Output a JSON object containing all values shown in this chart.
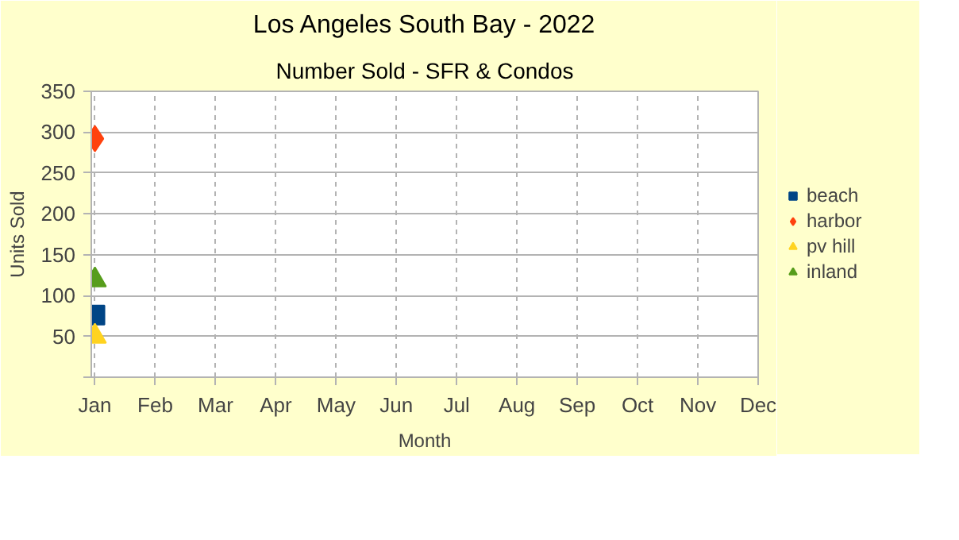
{
  "chart_data": {
    "type": "scatter",
    "title": "Los Angeles South Bay - 2022",
    "subtitle": "Number Sold - SFR & Condos",
    "xlabel": "Month",
    "ylabel": "Units Sold",
    "categories": [
      "Jan",
      "Feb",
      "Mar",
      "Apr",
      "May",
      "Jun",
      "Jul",
      "Aug",
      "Sep",
      "Oct",
      "Nov",
      "Dec"
    ],
    "series": [
      {
        "name": "beach",
        "color": "#004586",
        "marker": "square",
        "values": [
          76,
          null,
          null,
          null,
          null,
          null,
          null,
          null,
          null,
          null,
          null,
          null
        ]
      },
      {
        "name": "harbor",
        "color": "#ff420e",
        "marker": "diamond",
        "values": [
          292,
          null,
          null,
          null,
          null,
          null,
          null,
          null,
          null,
          null,
          null,
          null
        ]
      },
      {
        "name": "pv hill",
        "color": "#ffd320",
        "marker": "triangle",
        "values": [
          50,
          null,
          null,
          null,
          null,
          null,
          null,
          null,
          null,
          null,
          null,
          null
        ]
      },
      {
        "name": "inland",
        "color": "#579d1c",
        "marker": "triangle",
        "values": [
          119,
          null,
          null,
          null,
          null,
          null,
          null,
          null,
          null,
          null,
          null,
          null
        ]
      }
    ],
    "ylim": [
      0,
      350
    ],
    "yticks": [
      {
        "value": 0,
        "label": null
      },
      50,
      100,
      150,
      200,
      250,
      300,
      350
    ],
    "grid": true,
    "legend": "right"
  }
}
